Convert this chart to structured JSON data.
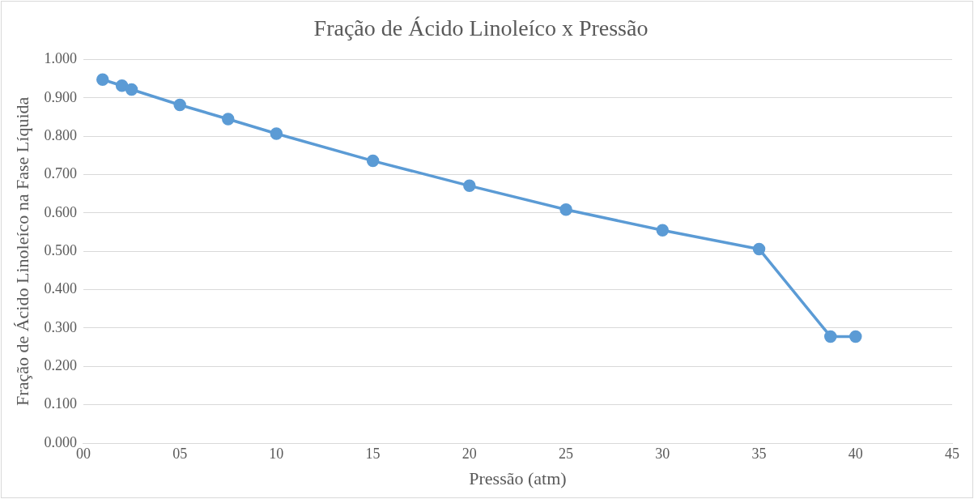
{
  "chart_data": {
    "type": "line",
    "title": "Fração de Ácido Linoleíco x Pressão",
    "xlabel": "Pressão (atm)",
    "ylabel": "Fração de Ácido Linoleíco na Fase Líquida",
    "x": [
      1,
      2,
      2.5,
      5,
      7.5,
      10,
      15,
      20,
      25,
      30,
      35,
      38.7,
      40
    ],
    "series": [
      {
        "color": "#5b9bd5",
        "values": [
          0.948,
          0.932,
          0.922,
          0.882,
          0.845,
          0.807,
          0.736,
          0.671,
          0.609,
          0.555,
          0.506,
          0.278,
          0.278
        ]
      }
    ],
    "xlim": [
      0,
      45
    ],
    "xticks": [
      {
        "value": 0,
        "label": "00"
      },
      {
        "value": 5,
        "label": "05"
      },
      10,
      15,
      20,
      25,
      30,
      35,
      40,
      45
    ],
    "ylim": [
      0,
      1
    ],
    "yticks": [
      {
        "value": 0,
        "label": "0.000"
      },
      {
        "value": 0.1,
        "label": "0.100"
      },
      {
        "value": 0.2,
        "label": "0.200"
      },
      {
        "value": 0.3,
        "label": "0.300"
      },
      {
        "value": 0.4,
        "label": "0.400"
      },
      {
        "value": 0.5,
        "label": "0.500"
      },
      {
        "value": 0.6,
        "label": "0.600"
      },
      {
        "value": 0.7,
        "label": "0.700"
      },
      {
        "value": 0.8,
        "label": "0.800"
      },
      {
        "value": 0.9,
        "label": "0.900"
      },
      {
        "value": 1,
        "label": "1.000"
      }
    ],
    "grid": "y",
    "legend": false,
    "marker": "circle",
    "line_style": "solid"
  }
}
